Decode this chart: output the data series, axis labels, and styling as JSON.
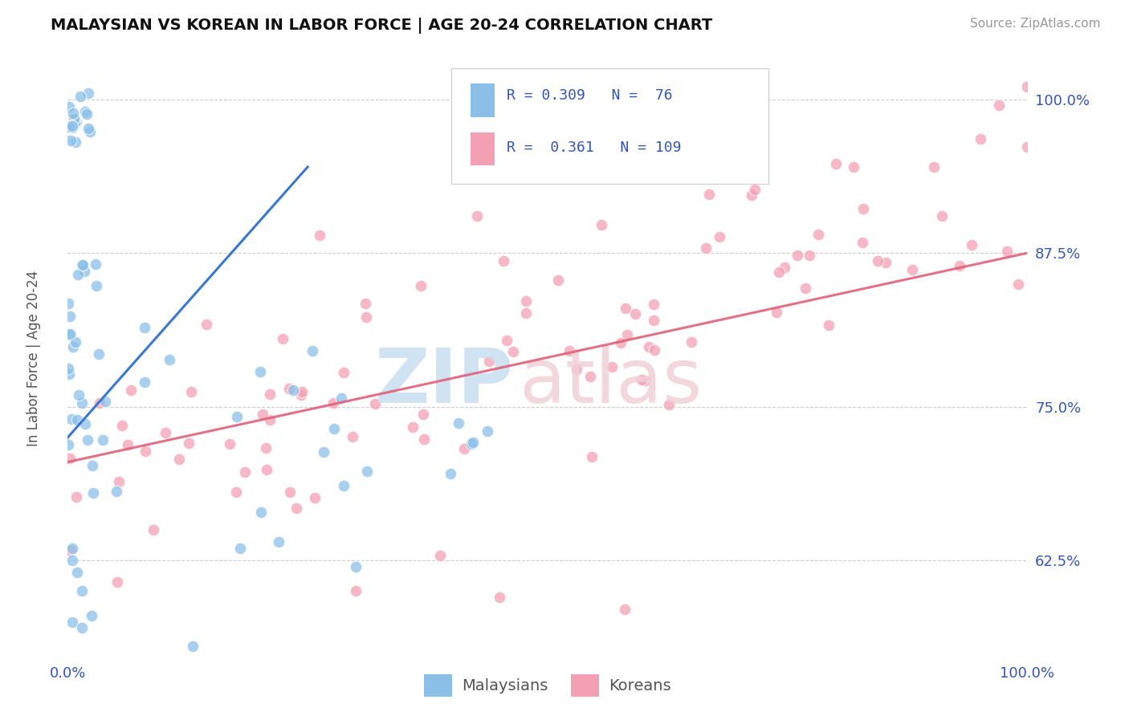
{
  "title": "MALAYSIAN VS KOREAN IN LABOR FORCE | AGE 20-24 CORRELATION CHART",
  "source_text": "Source: ZipAtlas.com",
  "ylabel": "In Labor Force | Age 20-24",
  "xlim": [
    0.0,
    1.0
  ],
  "ylim": [
    0.545,
    1.04
  ],
  "ytick_labels": [
    "62.5%",
    "75.0%",
    "87.5%",
    "100.0%"
  ],
  "ytick_values": [
    0.625,
    0.75,
    0.875,
    1.0
  ],
  "xtick_labels": [
    "0.0%",
    "100.0%"
  ],
  "xtick_values": [
    0.0,
    1.0
  ],
  "legend_r_malaysian": "R = 0.309",
  "legend_n_malaysian": "N =  76",
  "legend_r_korean": "R =  0.361",
  "legend_n_korean": "N = 109",
  "malaysian_color": "#8bbfe8",
  "korean_color": "#f4a0b4",
  "trendline_malaysian_color": "#3a78c9",
  "trendline_korean_color": "#e0607a",
  "watermark_zip_color": "#c8dff0",
  "watermark_atlas_color": "#f0d0d8"
}
